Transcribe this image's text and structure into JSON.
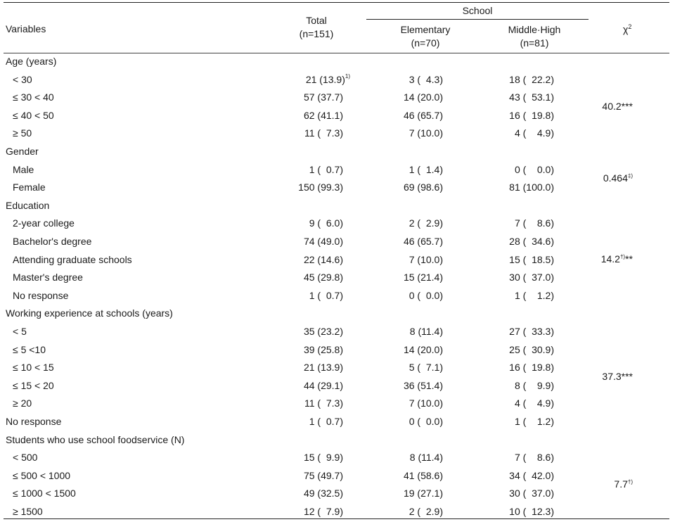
{
  "header": {
    "variables": "Variables",
    "total": "Total",
    "total_n": "(n=151)",
    "school": "School",
    "elementary": "Elementary",
    "elementary_n": "(n=70)",
    "middle_high": "Middle·High",
    "middle_high_n": "(n=81)",
    "chi": "χ",
    "chi_sup": "2"
  },
  "rows": [
    {
      "label": "Age  (years)",
      "cat": true
    },
    {
      "label": "< 30",
      "total": "21 (13.9)",
      "total_sup": "1)",
      "elem": "3 (  4.3)",
      "mid": "18 (  22.2)"
    },
    {
      "label": "≤ 30 < 40",
      "total": "57 (37.7)",
      "elem": "14 (20.0)",
      "mid": "43 (  53.1)"
    },
    {
      "label": "≤ 40 < 50",
      "total": "62 (41.1)",
      "elem": "46 (65.7)",
      "mid": "16 (  19.8)"
    },
    {
      "label": "≥ 50",
      "total": "11 (  7.3)",
      "elem": "7 (10.0)",
      "mid": "4 (    4.9)"
    },
    {
      "label": "Gender",
      "cat": true
    },
    {
      "label": "Male",
      "total": "1 (  0.7)",
      "elem": "1 (  1.4)",
      "mid": "0 (    0.0)"
    },
    {
      "label": "Female",
      "total": "150 (99.3)",
      "elem": "69 (98.6)",
      "mid": "81 (100.0)"
    },
    {
      "label": "Education",
      "cat": true
    },
    {
      "label": "2-year college",
      "total": "9 (  6.0)",
      "elem": "2 (  2.9)",
      "mid": "7 (    8.6)"
    },
    {
      "label": "Bachelor's degree",
      "total": "74 (49.0)",
      "elem": "46 (65.7)",
      "mid": "28 (  34.6)"
    },
    {
      "label": "Attending graduate schools",
      "total": "22 (14.6)",
      "elem": "7 (10.0)",
      "mid": "15 (  18.5)"
    },
    {
      "label": "Master's degree",
      "total": "45 (29.8)",
      "elem": "15 (21.4)",
      "mid": "30 (  37.0)"
    },
    {
      "label": "No response",
      "total": "1 (  0.7)",
      "elem": "0 (  0.0)",
      "mid": "1 (    1.2)"
    },
    {
      "label": "Working experience at schools  (years)",
      "cat": true
    },
    {
      "label": "< 5",
      "total": "35 (23.2)",
      "elem": "8 (11.4)",
      "mid": "27 (  33.3)"
    },
    {
      "label": "≤ 5 <10",
      "total": "39 (25.8)",
      "elem": "14 (20.0)",
      "mid": "25 (  30.9)"
    },
    {
      "label": "≤ 10 < 15",
      "total": "21 (13.9)",
      "elem": "5 (  7.1)",
      "mid": "16 (  19.8)"
    },
    {
      "label": "≤ 15 < 20",
      "total": "44 (29.1)",
      "elem": "36 (51.4)",
      "mid": "8 (    9.9)"
    },
    {
      "label": "≥ 20",
      "total": "11 (  7.3)",
      "elem": "7 (10.0)",
      "mid": "4 (    4.9)"
    },
    {
      "label": "No response",
      "cat_level": true,
      "total": "1 (  0.7)",
      "elem": "0 (  0.0)",
      "mid": "1 (    1.2)"
    },
    {
      "label": "Students who use school foodservice  (N)",
      "cat": true
    },
    {
      "label": "< 500",
      "total": "15 (  9.9)",
      "elem": "8 (11.4)",
      "mid": "7 (    8.6)"
    },
    {
      "label": "≤ 500 < 1000",
      "total": "75 (49.7)",
      "elem": "41 (58.6)",
      "mid": "34 (  42.0)"
    },
    {
      "label": "≤ 1000 < 1500",
      "total": "49 (32.5)",
      "elem": "19 (27.1)",
      "mid": "30 (  37.0)"
    },
    {
      "label": "≥ 1500",
      "total": "12 (  7.9)",
      "elem": "2 (  2.9)",
      "mid": "10 (  12.3)"
    }
  ],
  "chisq": [
    {
      "row_start": 1,
      "row_end": 4,
      "value": "40.2***",
      "sup": ""
    },
    {
      "row_start": 6,
      "row_end": 7,
      "value": "0.464",
      "sup": "‡)"
    },
    {
      "row_start": 9,
      "row_end": 13,
      "value": "14.2",
      "sup": "†)",
      "suffix": "**"
    },
    {
      "row_start": 15,
      "row_end": 20,
      "value": "37.3***",
      "sup": ""
    },
    {
      "row_start": 22,
      "row_end": 25,
      "value": "7.7",
      "sup": "†)"
    }
  ]
}
